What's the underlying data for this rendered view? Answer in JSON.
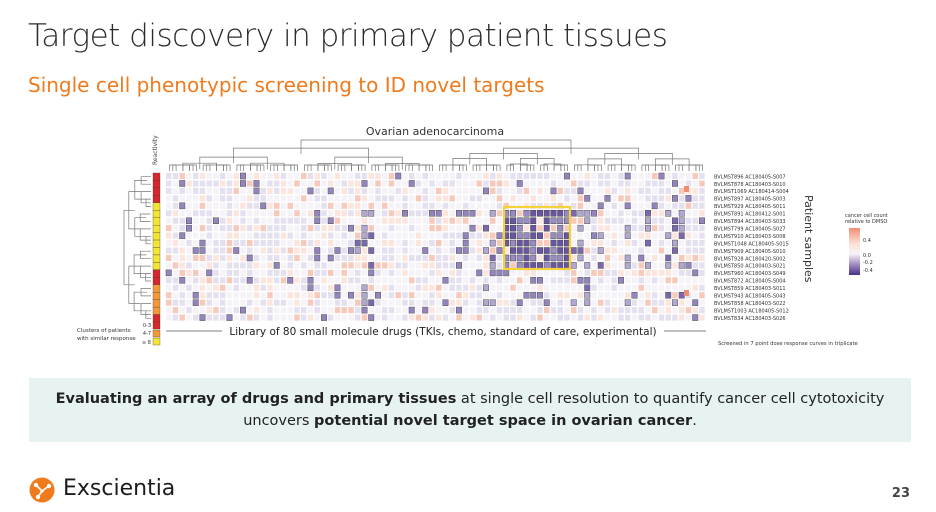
{
  "slide": {
    "title": "Target discovery in primary patient tissues",
    "subtitle": "Single cell phenotypic screening to ID novel targets",
    "page_number": "23"
  },
  "figure": {
    "heatmap_title": "Ovarian adenocarcinoma",
    "reactivity_label": "Reactivity",
    "x_label": "Library of 80 small molecule drugs (TKIs, chemo, standard of care, experimental)",
    "y_label": "Patient samples",
    "clusters_label_1": "Clusters of patients",
    "clusters_label_2": "with similar response",
    "cluster_legend": [
      {
        "label": "0-3",
        "color": "#d7272e"
      },
      {
        "label": "4-7",
        "color": "#f29a3a"
      },
      {
        "label": "≥ 8",
        "color": "#f2e535"
      }
    ],
    "screen_note": "Screened in 7 point dose response curves in triplicate",
    "colorbar": {
      "title_1": "cancer cell count",
      "title_2": "relative to DMSO",
      "ticks": [
        "0.4",
        "0.0",
        "-0.2",
        "-0.4"
      ]
    },
    "samples": [
      {
        "id": "BVLMST896 AC180405-S007",
        "cluster": "0-3"
      },
      {
        "id": "BVLMST878 AC180403-S010",
        "cluster": "0-3"
      },
      {
        "id": "BVLMST1069 AC180414-S004",
        "cluster": "0-3"
      },
      {
        "id": "BVLMST897 AC180405-S003",
        "cluster": "0-3"
      },
      {
        "id": "BVLMST929 AC180405-S011",
        "cluster": "≥ 8"
      },
      {
        "id": "BVLMST891 AC180412-S001",
        "cluster": "≥ 8"
      },
      {
        "id": "BVLMST894 AC180403-S033",
        "cluster": "≥ 8"
      },
      {
        "id": "BVLMST799 AC180405-S027",
        "cluster": "≥ 8"
      },
      {
        "id": "BVLMST910 AC180403-S008",
        "cluster": "≥ 8"
      },
      {
        "id": "BVLMST1048 AC180405-S015",
        "cluster": "≥ 8"
      },
      {
        "id": "BVLMST909 AC180405-S010",
        "cluster": "≥ 8"
      },
      {
        "id": "BVLMST928 AC180420-S002",
        "cluster": "≥ 8"
      },
      {
        "id": "BVLMST850 AC180403-S021",
        "cluster": "≥ 8"
      },
      {
        "id": "BVLMST960 AC180403-S049",
        "cluster": "0-3"
      },
      {
        "id": "BVLMST872 AC180405-S004",
        "cluster": "0-3"
      },
      {
        "id": "BVLMST859 AC180403-S011",
        "cluster": "4-7"
      },
      {
        "id": "BVLMST943 AC180405-S043",
        "cluster": "4-7"
      },
      {
        "id": "BVLMST858 AC180403-S022",
        "cluster": "4-7"
      },
      {
        "id": "BVLMST1003 AC180405-S012",
        "cluster": "4-7"
      },
      {
        "id": "BVLMST834 AC180403-S026",
        "cluster": "0-3"
      }
    ],
    "highlight_color": "#f3d23a"
  },
  "callout": {
    "line1_bold": "Evaluating an array of drugs and primary tissues",
    "line1_rest": " at single cell resolution to quantify cancer cell cytotoxicity",
    "line2_pre": "uncovers ",
    "line2_bold": "potential novel target space in ovarian cancer",
    "line2_post": "."
  },
  "brand": {
    "name": "Exscientia",
    "logo_color": "#f07b1d"
  }
}
